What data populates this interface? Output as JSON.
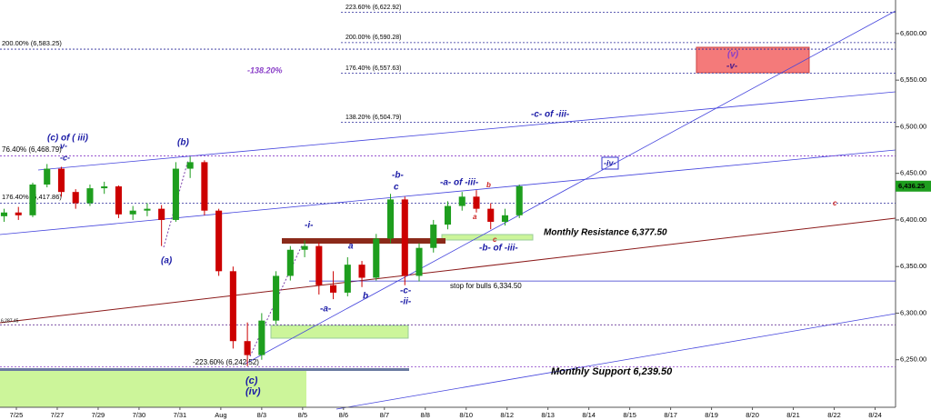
{
  "chart_data": {
    "type": "candlestick",
    "x": [
      -0.3,
      0.05,
      0.4,
      0.75,
      1.1,
      1.45,
      1.8,
      2.15,
      2.5,
      2.85,
      3.2,
      3.55,
      3.9,
      4.25,
      4.6,
      4.95,
      5.3,
      5.65,
      6.0,
      6.35,
      6.7,
      7.05,
      7.4,
      7.75,
      8.1,
      8.45,
      8.8,
      9.15,
      9.5,
      9.85,
      10.2,
      10.55,
      10.9,
      11.25,
      11.6,
      11.95,
      12.3
    ],
    "open": [
      6404,
      6408,
      6405,
      6438,
      6455,
      6430,
      6418,
      6434,
      6436,
      6406,
      6410,
      6412,
      6400,
      6455,
      6462,
      6410,
      6345,
      6270,
      6255,
      6292,
      6340,
      6368,
      6372,
      6330,
      6322,
      6352,
      6338,
      6380,
      6422,
      6340,
      6370,
      6395,
      6415,
      6425,
      6412,
      6398,
      6405
    ],
    "high": [
      6412,
      6414,
      6440,
      6460,
      6457,
      6433,
      6438,
      6441,
      6437,
      6415,
      6418,
      6416,
      6462,
      6468,
      6464,
      6412,
      6350,
      6290,
      6300,
      6345,
      6372,
      6378,
      6376,
      6345,
      6360,
      6356,
      6385,
      6428,
      6425,
      6375,
      6400,
      6420,
      6430,
      6432,
      6418,
      6412,
      6438
    ],
    "low": [
      6398,
      6400,
      6403,
      6435,
      6425,
      6412,
      6415,
      6428,
      6402,
      6400,
      6404,
      6372,
      6398,
      6445,
      6405,
      6340,
      6262,
      6243,
      6250,
      6288,
      6335,
      6360,
      6320,
      6315,
      6318,
      6328,
      6335,
      6375,
      6330,
      6334,
      6365,
      6390,
      6410,
      6408,
      6390,
      6394,
      6402
    ],
    "close": [
      6408,
      6405,
      6438,
      6455,
      6430,
      6418,
      6434,
      6436,
      6406,
      6410,
      6412,
      6400,
      6455,
      6462,
      6410,
      6345,
      6270,
      6255,
      6292,
      6340,
      6368,
      6372,
      6330,
      6322,
      6352,
      6338,
      6380,
      6422,
      6340,
      6370,
      6395,
      6415,
      6425,
      6412,
      6398,
      6405,
      6436.25
    ],
    "last_label": "6,436.25",
    "up_color": "#1e9e1e",
    "down_color": "#cc0000",
    "grid": false,
    "xlim": [
      -0.4,
      21.5
    ],
    "ylim": [
      6199,
      6636
    ],
    "xticks": [
      {
        "value": 0,
        "label": "7/25"
      },
      {
        "value": 1,
        "label": "7/27"
      },
      {
        "value": 2,
        "label": "7/29"
      },
      {
        "value": 3,
        "label": "7/30"
      },
      {
        "value": 4,
        "label": "7/31"
      },
      {
        "value": 5,
        "label": "Aug"
      },
      {
        "value": 6,
        "label": "8/3"
      },
      {
        "value": 7,
        "label": "8/5"
      },
      {
        "value": 8,
        "label": "8/6"
      },
      {
        "value": 9,
        "label": "8/7"
      },
      {
        "value": 10,
        "label": "8/8"
      },
      {
        "value": 11,
        "label": "8/10"
      },
      {
        "value": 12,
        "label": "8/12"
      },
      {
        "value": 13,
        "label": "8/13"
      },
      {
        "value": 14,
        "label": "8/14"
      },
      {
        "value": 15,
        "label": "8/15"
      },
      {
        "value": 16,
        "label": "8/17"
      },
      {
        "value": 17,
        "label": "8/19"
      },
      {
        "value": 18,
        "label": "8/20"
      },
      {
        "value": 19,
        "label": "8/21"
      },
      {
        "value": 20,
        "label": "8/22"
      },
      {
        "value": 21,
        "label": "8/24"
      }
    ],
    "yticks": [
      {
        "value": 6250,
        "label": "6,250.00"
      },
      {
        "value": 6300,
        "label": "6,300.00"
      },
      {
        "value": 6350,
        "label": "6,350.00"
      },
      {
        "value": 6400,
        "label": "6,400.00"
      },
      {
        "value": 6450,
        "label": "6,450.00"
      },
      {
        "value": 6500,
        "label": "6,500.00"
      },
      {
        "value": 6550,
        "label": "6,550.00"
      },
      {
        "value": 6600,
        "label": "6,600.00"
      }
    ],
    "levels": [
      {
        "label": "223.60% (6,622.92)",
        "value": 6622.92
      },
      {
        "label": "200.00% (6,590.28)",
        "value": 6590.28
      },
      {
        "label": "200.00% (6,583.25)",
        "value": 6583.25
      },
      {
        "label": "176.40% (6,557.63)",
        "value": 6557.63
      },
      {
        "label": "138.20% (6,504.79)",
        "value": 6504.79
      },
      {
        "label": "76.40% (6,468.79)",
        "value": 6468.79
      },
      {
        "label": "176.40% (6,417.86)",
        "value": 6417.86
      },
      {
        "label": "6,287.45",
        "value": 6287.45
      },
      {
        "label": "-223.60% (6,242.52)",
        "value": 6242.52
      },
      {
        "label": "stop for bulls 6,334.50",
        "value": 6334.5
      },
      {
        "label": "Monthly Resistance 6,377.50",
        "value": 6377.5
      },
      {
        "label": "Monthly Support 6,239.50",
        "value": 6239.5
      }
    ],
    "annotations": [
      "(c) of ( iii)",
      "v-",
      "-c-",
      "(b)",
      "(a)",
      "-i-",
      "a",
      "b",
      "-a-",
      "(c)",
      "(iv)",
      "-b-",
      "c",
      "-c-",
      "-ii-",
      "-a- of -iii-",
      "b",
      "a",
      "c",
      "-b- of -iii-",
      "-c- of -iii-",
      "-iv-",
      "(v)",
      "-v-",
      "c",
      "-138.20%"
    ]
  }
}
